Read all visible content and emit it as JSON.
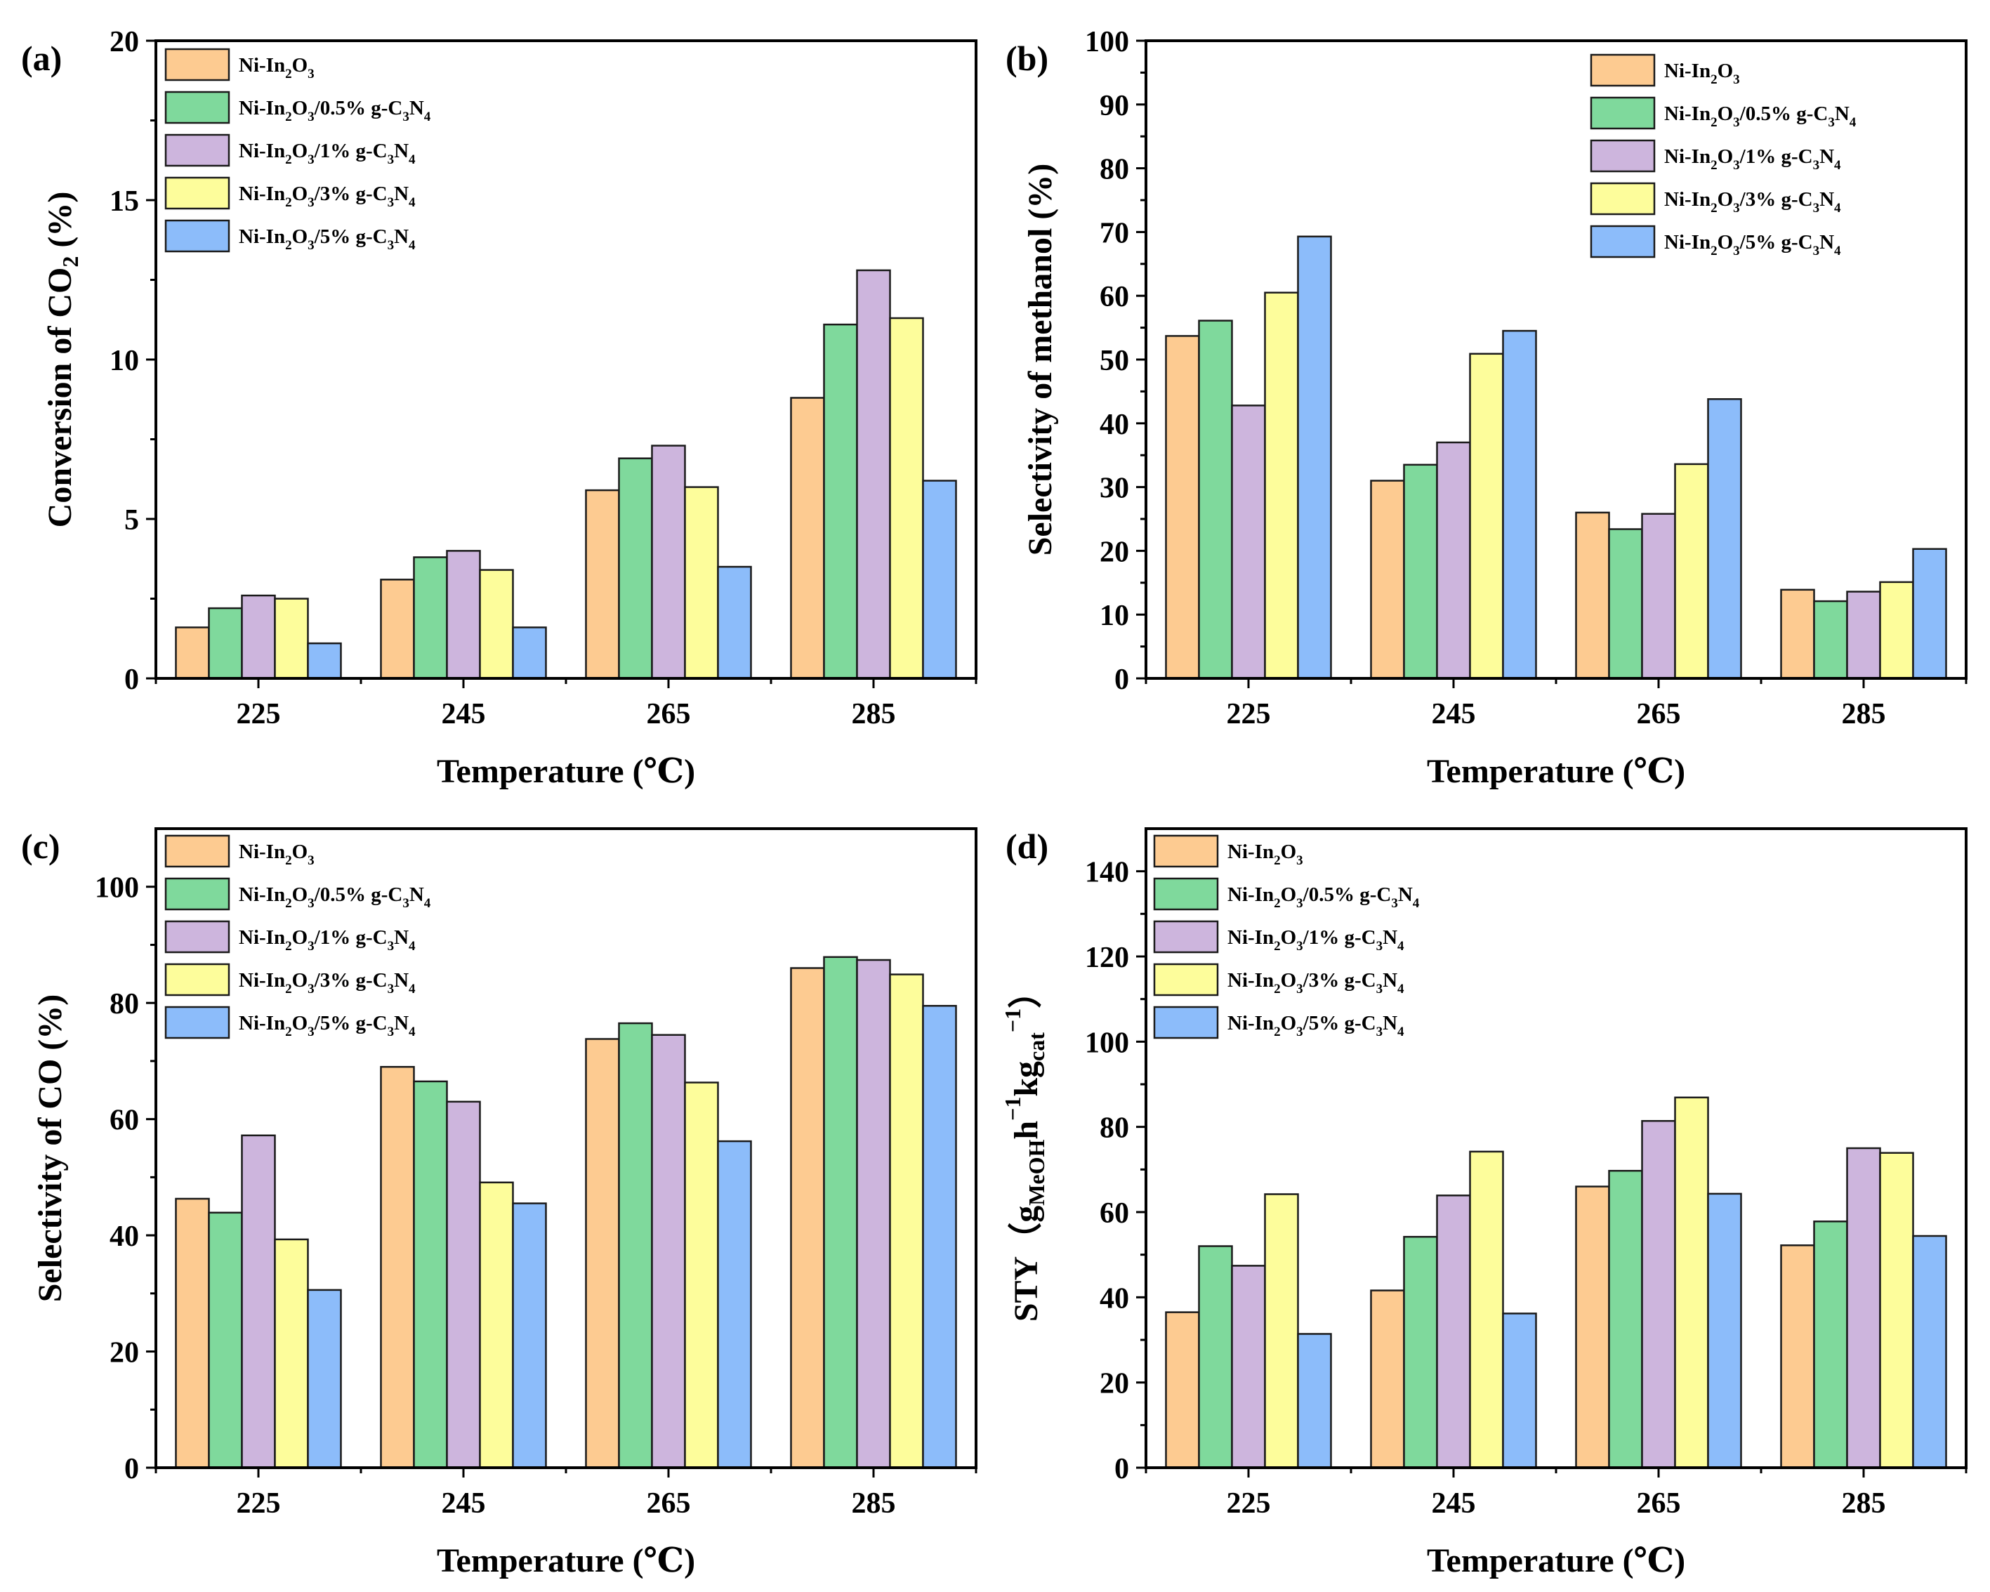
{
  "figure": {
    "xlabel": "Temperature (℃)",
    "legend": [
      {
        "label": "Ni-In2O3",
        "parts": [
          [
            "Ni-In",
            ""
          ],
          [
            "2",
            "sub"
          ],
          [
            "O",
            ""
          ],
          [
            "3",
            "sub"
          ]
        ]
      },
      {
        "label": "Ni-In2O3/0.5% g-C3N4",
        "parts": [
          [
            "Ni-In",
            ""
          ],
          [
            "2",
            "sub"
          ],
          [
            "O",
            ""
          ],
          [
            "3",
            "sub"
          ],
          [
            "/0.5% g-C",
            ""
          ],
          [
            "3",
            "sub"
          ],
          [
            "N",
            ""
          ],
          [
            "4",
            "sub"
          ]
        ]
      },
      {
        "label": "Ni-In2O3/1% g-C3N4",
        "parts": [
          [
            "Ni-In",
            ""
          ],
          [
            "2",
            "sub"
          ],
          [
            "O",
            ""
          ],
          [
            "3",
            "sub"
          ],
          [
            "/1% g-C",
            ""
          ],
          [
            "3",
            "sub"
          ],
          [
            "N",
            ""
          ],
          [
            "4",
            "sub"
          ]
        ]
      },
      {
        "label": "Ni-In2O3/3% g-C3N4",
        "parts": [
          [
            "Ni-In",
            ""
          ],
          [
            "2",
            "sub"
          ],
          [
            "O",
            ""
          ],
          [
            "3",
            "sub"
          ],
          [
            "/3% g-C",
            ""
          ],
          [
            "3",
            "sub"
          ],
          [
            "N",
            ""
          ],
          [
            "4",
            "sub"
          ]
        ]
      },
      {
        "label": "Ni-In2O3/5% g-C3N4",
        "parts": [
          [
            "Ni-In",
            ""
          ],
          [
            "2",
            "sub"
          ],
          [
            "O",
            ""
          ],
          [
            "3",
            "sub"
          ],
          [
            "/5% g-C",
            ""
          ],
          [
            "3",
            "sub"
          ],
          [
            "N",
            ""
          ],
          [
            "4",
            "sub"
          ]
        ]
      }
    ],
    "colors": [
      "#fdcb91",
      "#7fd99c",
      "#cdb5dd",
      "#fdfd9b",
      "#8cbcfa"
    ]
  },
  "chart_data": [
    {
      "panel": "(a)",
      "type": "bar",
      "categories": [
        "225",
        "245",
        "265",
        "285"
      ],
      "ylabel": "Conversion of CO2 (%)",
      "ylabel_parts": [
        [
          "Conversion of CO",
          ""
        ],
        [
          "2",
          "sub"
        ],
        [
          " (%)",
          ""
        ]
      ],
      "ylim": [
        0,
        20
      ],
      "yticks": [
        0,
        5,
        10,
        15,
        20
      ],
      "legend_position": "top-left",
      "series": [
        {
          "name": "Ni-In2O3",
          "values": [
            1.6,
            3.1,
            5.9,
            8.8
          ]
        },
        {
          "name": "Ni-In2O3/0.5% g-C3N4",
          "values": [
            2.2,
            3.8,
            6.9,
            11.1
          ]
        },
        {
          "name": "Ni-In2O3/1% g-C3N4",
          "values": [
            2.6,
            4.0,
            7.3,
            12.8
          ]
        },
        {
          "name": "Ni-In2O3/3% g-C3N4",
          "values": [
            2.5,
            3.4,
            6.0,
            11.3
          ]
        },
        {
          "name": "Ni-In2O3/5% g-C3N4",
          "values": [
            1.1,
            1.6,
            3.5,
            6.2
          ]
        }
      ]
    },
    {
      "panel": "(b)",
      "type": "bar",
      "categories": [
        "225",
        "245",
        "265",
        "285"
      ],
      "ylabel": "Selectivity of methanol (%)",
      "ylabel_parts": [
        [
          "Selectivity of methanol (%)",
          ""
        ]
      ],
      "ylim": [
        0,
        100
      ],
      "yticks": [
        0,
        10,
        20,
        30,
        40,
        50,
        60,
        70,
        80,
        90,
        100
      ],
      "legend_position": "top-right",
      "series": [
        {
          "name": "Ni-In2O3",
          "values": [
            53.7,
            31.0,
            26.0,
            13.9
          ]
        },
        {
          "name": "Ni-In2O3/0.5% g-C3N4",
          "values": [
            56.1,
            33.5,
            23.4,
            12.1
          ]
        },
        {
          "name": "Ni-In2O3/1% g-C3N4",
          "values": [
            42.8,
            37.0,
            25.8,
            13.6
          ]
        },
        {
          "name": "Ni-In2O3/3% g-C3N4",
          "values": [
            60.5,
            50.9,
            33.6,
            15.1
          ]
        },
        {
          "name": "Ni-In2O3/5% g-C3N4",
          "values": [
            69.3,
            54.5,
            43.8,
            20.3
          ]
        }
      ]
    },
    {
      "panel": "(c)",
      "type": "bar",
      "categories": [
        "225",
        "245",
        "265",
        "285"
      ],
      "ylabel": "Selectivity of CO (%)",
      "ylabel_parts": [
        [
          "Selectivity of CO (%)",
          ""
        ]
      ],
      "ylim": [
        0,
        110
      ],
      "yticks": [
        0,
        20,
        40,
        60,
        80,
        100
      ],
      "legend_position": "top-left",
      "series": [
        {
          "name": "Ni-In2O3",
          "values": [
            46.3,
            69.0,
            73.8,
            86.0
          ]
        },
        {
          "name": "Ni-In2O3/0.5% g-C3N4",
          "values": [
            43.9,
            66.5,
            76.5,
            87.9
          ]
        },
        {
          "name": "Ni-In2O3/1% g-C3N4",
          "values": [
            57.2,
            63.0,
            74.5,
            87.4
          ]
        },
        {
          "name": "Ni-In2O3/3% g-C3N4",
          "values": [
            39.3,
            49.1,
            66.3,
            84.9
          ]
        },
        {
          "name": "Ni-In2O3/5% g-C3N4",
          "values": [
            30.6,
            45.5,
            56.2,
            79.5
          ]
        }
      ]
    },
    {
      "panel": "(d)",
      "type": "bar",
      "categories": [
        "225",
        "245",
        "265",
        "285"
      ],
      "ylabel": "STY（gMeOHh−1kgcat−1）",
      "ylabel_parts": [
        [
          "STY（g",
          ""
        ],
        [
          "MeOH",
          "sub"
        ],
        [
          "h",
          ""
        ],
        [
          "−1",
          "sup"
        ],
        [
          "kg",
          ""
        ],
        [
          "cat",
          "sub"
        ],
        [
          "−1",
          "sup"
        ],
        [
          "）",
          ""
        ]
      ],
      "ylim": [
        0,
        150
      ],
      "yticks": [
        0,
        20,
        40,
        60,
        80,
        100,
        120,
        140
      ],
      "legend_position": "top-left",
      "series": [
        {
          "name": "Ni-In2O3",
          "values": [
            36.5,
            41.6,
            66.0,
            52.2
          ]
        },
        {
          "name": "Ni-In2O3/0.5% g-C3N4",
          "values": [
            52.0,
            54.2,
            69.7,
            57.8
          ]
        },
        {
          "name": "Ni-In2O3/1% g-C3N4",
          "values": [
            47.4,
            63.9,
            81.4,
            75.0
          ]
        },
        {
          "name": "Ni-In2O3/3% g-C3N4",
          "values": [
            64.2,
            74.2,
            86.9,
            73.9
          ]
        },
        {
          "name": "Ni-In2O3/5% g-C3N4",
          "values": [
            31.4,
            36.2,
            64.3,
            54.4
          ]
        }
      ]
    }
  ]
}
